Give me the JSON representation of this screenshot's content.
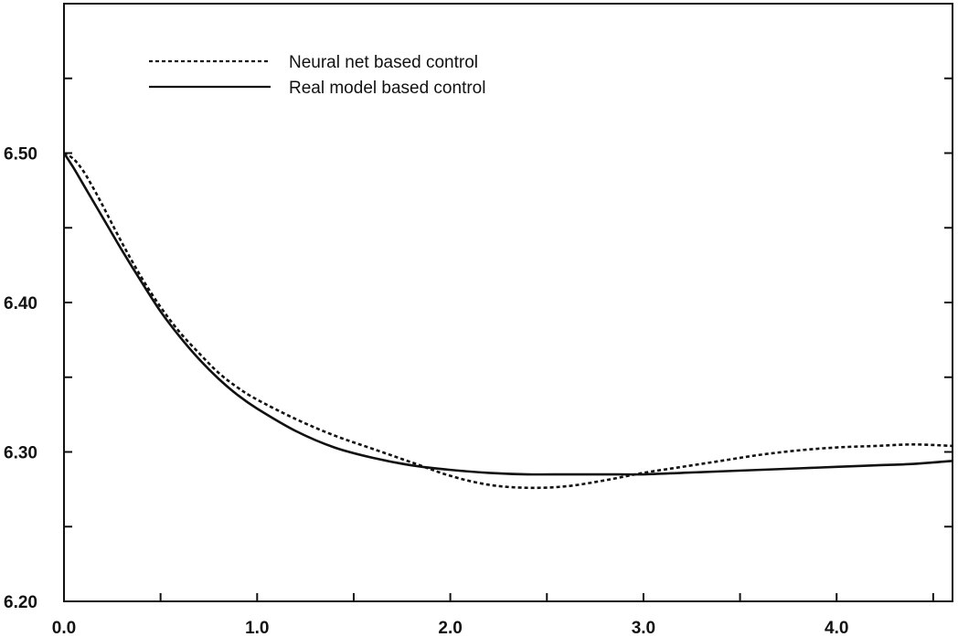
{
  "chart_data": {
    "type": "line",
    "title": "",
    "xlabel": "",
    "ylabel": "",
    "xlim": [
      0.0,
      4.6
    ],
    "ylim": [
      6.2,
      6.6
    ],
    "x_ticks": [
      0.0,
      0.5,
      1.0,
      1.5,
      2.0,
      2.5,
      3.0,
      3.5,
      4.0,
      4.5
    ],
    "x_tick_labels": [
      "0.0",
      "1.0",
      "2.0",
      "3.0",
      "4.0"
    ],
    "x_tick_label_values": [
      0.0,
      1.0,
      2.0,
      3.0,
      4.0
    ],
    "y_ticks": [
      6.2,
      6.25,
      6.3,
      6.35,
      6.4,
      6.45,
      6.5,
      6.55
    ],
    "y_tick_labels": [
      "6.20",
      "6.30",
      "6.40",
      "6.50"
    ],
    "y_tick_label_values": [
      6.2,
      6.3,
      6.4,
      6.5
    ],
    "grid": false,
    "legend_position": "top-left",
    "series": [
      {
        "name": "Neural net based control",
        "style": "dotted",
        "color": "#111111",
        "x": [
          0.0,
          0.05,
          0.1,
          0.15,
          0.2,
          0.3,
          0.4,
          0.5,
          0.6,
          0.7,
          0.8,
          0.9,
          1.0,
          1.2,
          1.4,
          1.6,
          1.8,
          2.0,
          2.2,
          2.4,
          2.6,
          2.8,
          3.0,
          3.2,
          3.4,
          3.6,
          3.8,
          4.0,
          4.2,
          4.4,
          4.6
        ],
        "values": [
          6.5,
          6.496,
          6.488,
          6.477,
          6.465,
          6.44,
          6.417,
          6.397,
          6.38,
          6.366,
          6.353,
          6.343,
          6.335,
          6.322,
          6.311,
          6.302,
          6.293,
          6.284,
          6.278,
          6.276,
          6.277,
          6.281,
          6.286,
          6.29,
          6.294,
          6.298,
          6.301,
          6.303,
          6.304,
          6.305,
          6.304
        ]
      },
      {
        "name": "Real model based control",
        "style": "solid",
        "color": "#111111",
        "x": [
          0.0,
          0.05,
          0.1,
          0.15,
          0.2,
          0.3,
          0.4,
          0.5,
          0.6,
          0.7,
          0.8,
          0.9,
          1.0,
          1.2,
          1.4,
          1.6,
          1.8,
          2.0,
          2.2,
          2.4,
          2.6,
          2.8,
          3.0,
          3.2,
          3.4,
          3.6,
          3.8,
          4.0,
          4.2,
          4.4,
          4.6
        ],
        "values": [
          6.5,
          6.49,
          6.479,
          6.468,
          6.457,
          6.435,
          6.414,
          6.394,
          6.377,
          6.362,
          6.349,
          6.338,
          6.329,
          6.314,
          6.303,
          6.296,
          6.291,
          6.288,
          6.286,
          6.285,
          6.285,
          6.285,
          6.285,
          6.286,
          6.287,
          6.288,
          6.289,
          6.29,
          6.291,
          6.292,
          6.294
        ]
      }
    ]
  }
}
